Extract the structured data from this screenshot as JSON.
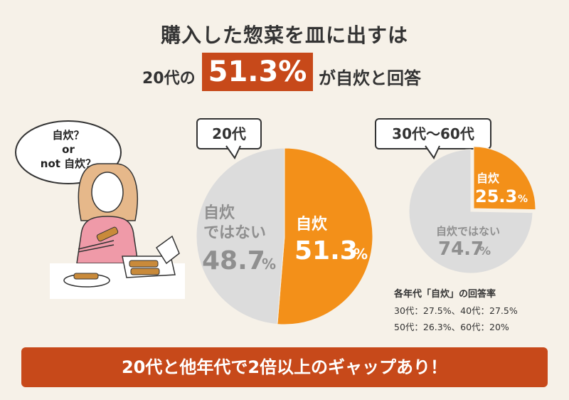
{
  "header": {
    "line1": "購入した惣菜を皿に出すは",
    "line2_left": "20代の",
    "line2_highlight": "51.3%",
    "line2_right": "が自炊と回答"
  },
  "speech_bubble": {
    "line1": "自炊？",
    "line2": "or",
    "line3": "not 自炊？"
  },
  "chart_data": [
    {
      "type": "pie",
      "title": "20代",
      "slices": [
        {
          "label": "自炊",
          "value": 51.3,
          "color": "#f39019"
        },
        {
          "label": "自炊ではない",
          "value": 48.7,
          "color": "#dcdcdc"
        }
      ]
    },
    {
      "type": "pie",
      "title": "30代〜60代",
      "slices": [
        {
          "label": "自炊",
          "value": 25.3,
          "color": "#f39019"
        },
        {
          "label": "自炊ではない",
          "value": 74.7,
          "color": "#dcdcdc"
        }
      ]
    }
  ],
  "pie20_labels": {
    "yes_label": "自炊",
    "yes_value": "51.3",
    "yes_unit": "%",
    "no_label1": "自炊",
    "no_label2": "ではない",
    "no_value": "48.7",
    "no_unit": "%"
  },
  "pie30_labels": {
    "yes_label": "自炊",
    "yes_value": "25.3",
    "yes_unit": "%",
    "no_label": "自炊ではない",
    "no_value": "74.7",
    "no_unit": "%"
  },
  "note": {
    "title": "各年代「自炊」の回答率",
    "line1": "30代：27.5%、40代：27.5%",
    "line2": "50代：26.3%、60代：20%"
  },
  "banner": {
    "text": "20代と他年代で2倍以上のギャップあり！"
  },
  "colors": {
    "accent": "#c7491a",
    "orange": "#f39019",
    "gray": "#dcdcdc",
    "background": "#f6f1e8"
  }
}
